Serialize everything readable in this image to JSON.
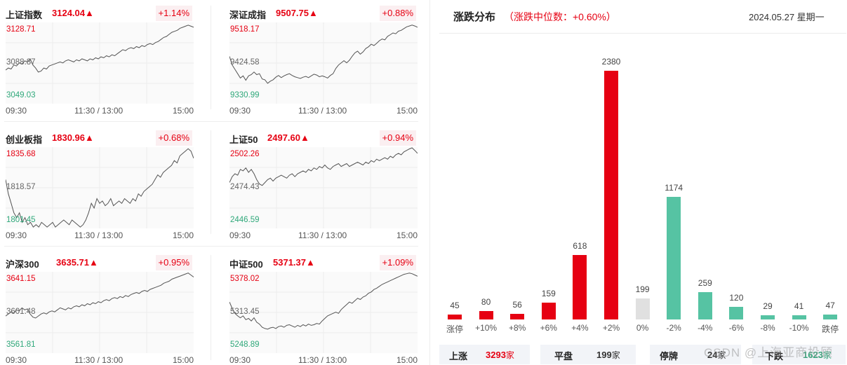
{
  "panels": [
    {
      "name": "上证指数",
      "value": "3124.04▲",
      "change": "+1.14%",
      "high": "3128.71",
      "mid": "3088.87",
      "low": "3049.03",
      "times": [
        "09:30",
        "11:30 / 13:00",
        "15:00"
      ],
      "series": [
        3082,
        3084,
        3083,
        3087,
        3086,
        3089,
        3088,
        3091,
        3090,
        3093,
        3087,
        3084,
        3080,
        3081,
        3084,
        3083,
        3086,
        3087,
        3088,
        3089,
        3090,
        3089,
        3091,
        3092,
        3091,
        3090,
        3092,
        3091,
        3093,
        3092,
        3091,
        3093,
        3092,
        3094,
        3093,
        3095,
        3094,
        3096,
        3095,
        3097,
        3096,
        3098,
        3100,
        3102,
        3101,
        3103,
        3104,
        3103,
        3105,
        3104,
        3106,
        3105,
        3107,
        3108,
        3107,
        3109,
        3110,
        3112,
        3114,
        3115,
        3117,
        3119,
        3120,
        3121,
        3123,
        3124,
        3125,
        3126,
        3125,
        3124
      ],
      "ymin": 3049.03,
      "ymax": 3128.71
    },
    {
      "name": "深证成指",
      "value": "9507.75▲",
      "change": "+0.88%",
      "high": "9518.17",
      "mid": "9424.58",
      "low": "9330.99",
      "times": [
        "09:30",
        "11:30 / 13:00",
        "15:00"
      ],
      "series": [
        9440,
        9420,
        9410,
        9400,
        9390,
        9395,
        9385,
        9395,
        9398,
        9404,
        9398,
        9400,
        9388,
        9386,
        9378,
        9383,
        9386,
        9392,
        9396,
        9391,
        9395,
        9398,
        9400,
        9396,
        9393,
        9391,
        9389,
        9392,
        9394,
        9391,
        9395,
        9399,
        9397,
        9393,
        9395,
        9393,
        9390,
        9396,
        9400,
        9412,
        9420,
        9425,
        9430,
        9425,
        9431,
        9440,
        9448,
        9452,
        9445,
        9450,
        9458,
        9462,
        9468,
        9465,
        9470,
        9476,
        9480,
        9478,
        9486,
        9490,
        9494,
        9492,
        9498,
        9500,
        9504,
        9508,
        9510,
        9512,
        9510,
        9507
      ],
      "ymin": 9330.99,
      "ymax": 9518.17
    },
    {
      "name": "创业板指",
      "value": "1830.96▲",
      "change": "+0.68%",
      "high": "1835.68",
      "mid": "1818.57",
      "low": "1801.45",
      "times": [
        "09:30",
        "11:30 / 13:00",
        "15:00"
      ],
      "series": [
        1822,
        1816,
        1812,
        1808,
        1806,
        1808,
        1804,
        1806,
        1803,
        1804,
        1802,
        1803,
        1802,
        1804,
        1803,
        1802,
        1803,
        1804,
        1802,
        1803,
        1804,
        1805,
        1804,
        1803,
        1805,
        1804,
        1803,
        1802,
        1803,
        1805,
        1808,
        1812,
        1810,
        1814,
        1812,
        1813,
        1811,
        1812,
        1814,
        1811,
        1812,
        1813,
        1812,
        1814,
        1813,
        1812,
        1814,
        1813,
        1816,
        1815,
        1817,
        1818,
        1819,
        1820,
        1822,
        1824,
        1823,
        1825,
        1826,
        1827,
        1828,
        1830,
        1829,
        1832,
        1833,
        1834,
        1835,
        1834,
        1831
      ],
      "ymin": 1801.45,
      "ymax": 1835.68
    },
    {
      "name": "上证50",
      "value": "2497.60▲",
      "change": "+0.94%",
      "high": "2502.26",
      "mid": "2474.43",
      "low": "2446.59",
      "times": [
        "09:30",
        "11:30 / 13:00",
        "15:00"
      ],
      "series": [
        2478,
        2482,
        2484,
        2483,
        2487,
        2486,
        2488,
        2485,
        2487,
        2484,
        2480,
        2477,
        2476,
        2478,
        2480,
        2481,
        2479,
        2481,
        2482,
        2483,
        2482,
        2481,
        2483,
        2484,
        2482,
        2484,
        2485,
        2486,
        2485,
        2487,
        2486,
        2488,
        2487,
        2489,
        2488,
        2490,
        2488,
        2487,
        2489,
        2490,
        2491,
        2489,
        2490,
        2491,
        2489,
        2490,
        2491,
        2492,
        2491,
        2490,
        2492,
        2491,
        2493,
        2492,
        2494,
        2493,
        2494,
        2495,
        2494,
        2496,
        2495,
        2497,
        2498,
        2497,
        2499,
        2500,
        2501,
        2502,
        2500,
        2498
      ],
      "ymin": 2446.59,
      "ymax": 2502.26
    },
    {
      "name": "沪深300",
      "value": "3635.71▲",
      "change": "+0.95%",
      "high": "3641.15",
      "mid": "3601.48",
      "low": "3561.81",
      "times": [
        "09:30",
        "11:30 / 13:00",
        "15:00"
      ],
      "series": [
        3598,
        3600,
        3602,
        3601,
        3604,
        3603,
        3606,
        3604,
        3605,
        3600,
        3597,
        3596,
        3598,
        3600,
        3601,
        3600,
        3602,
        3603,
        3602,
        3604,
        3606,
        3605,
        3604,
        3606,
        3605,
        3607,
        3608,
        3607,
        3609,
        3608,
        3610,
        3609,
        3611,
        3610,
        3612,
        3611,
        3613,
        3614,
        3613,
        3615,
        3616,
        3615,
        3617,
        3616,
        3618,
        3617,
        3619,
        3620,
        3621,
        3620,
        3622,
        3623,
        3622,
        3624,
        3625,
        3626,
        3627,
        3628,
        3630,
        3631,
        3632,
        3634,
        3635,
        3636,
        3637,
        3638,
        3639,
        3640,
        3638,
        3636
      ],
      "ymin": 3561.81,
      "ymax": 3641.15
    },
    {
      "name": "中证500",
      "value": "5371.37▲",
      "change": "+1.09%",
      "high": "5378.02",
      "mid": "5313.45",
      "low": "5248.89",
      "times": [
        "09:30",
        "11:30 / 13:00",
        "15:00"
      ],
      "series": [
        5330,
        5320,
        5312,
        5308,
        5305,
        5308,
        5302,
        5304,
        5300,
        5305,
        5298,
        5295,
        5290,
        5288,
        5287,
        5289,
        5290,
        5288,
        5291,
        5292,
        5290,
        5293,
        5294,
        5292,
        5290,
        5293,
        5291,
        5294,
        5292,
        5295,
        5293,
        5294,
        5296,
        5295,
        5300,
        5304,
        5308,
        5310,
        5312,
        5314,
        5312,
        5318,
        5322,
        5326,
        5330,
        5328,
        5332,
        5336,
        5334,
        5338,
        5340,
        5344,
        5346,
        5350,
        5352,
        5355,
        5358,
        5360,
        5362,
        5364,
        5366,
        5368,
        5370,
        5372,
        5374,
        5375,
        5376,
        5375,
        5373,
        5371
      ],
      "ymin": 5248.89,
      "ymax": 5378.02
    }
  ],
  "distribution": {
    "title": "涨跌分布",
    "median_text": "（涨跌中位数：+0.60%）",
    "date": "2024.05.27 星期一"
  },
  "chart_data": {
    "type": "bar",
    "categories": [
      "涨停",
      "+10%",
      "+8%",
      "+6%",
      "+4%",
      "+2%",
      "0%",
      "-2%",
      "-4%",
      "-6%",
      "-8%",
      "-10%",
      "跌停"
    ],
    "values": [
      45,
      80,
      56,
      159,
      618,
      2380,
      199,
      1174,
      259,
      120,
      29,
      41,
      47
    ],
    "ylim": [
      0,
      2380
    ],
    "colors": [
      "#e60012",
      "#e60012",
      "#e60012",
      "#e60012",
      "#e60012",
      "#e60012",
      "#e0e0e0",
      "#56c3a3",
      "#56c3a3",
      "#56c3a3",
      "#56c3a3",
      "#56c3a3",
      "#56c3a3"
    ]
  },
  "summary": {
    "up_label": "上涨",
    "up_value": "3293",
    "up_unit": "家",
    "flat_label": "平盘",
    "flat_value": "199",
    "flat_unit": "家",
    "halt_label": "停牌",
    "halt_value": "24",
    "halt_unit": "家",
    "down_label": "下跌",
    "down_value": "1623",
    "down_unit": "家"
  },
  "watermark": "CSDN @上海亚商投顾",
  "colors": {
    "up": "#e60012",
    "down": "#2fa87a",
    "flat": "#e0e0e0"
  }
}
